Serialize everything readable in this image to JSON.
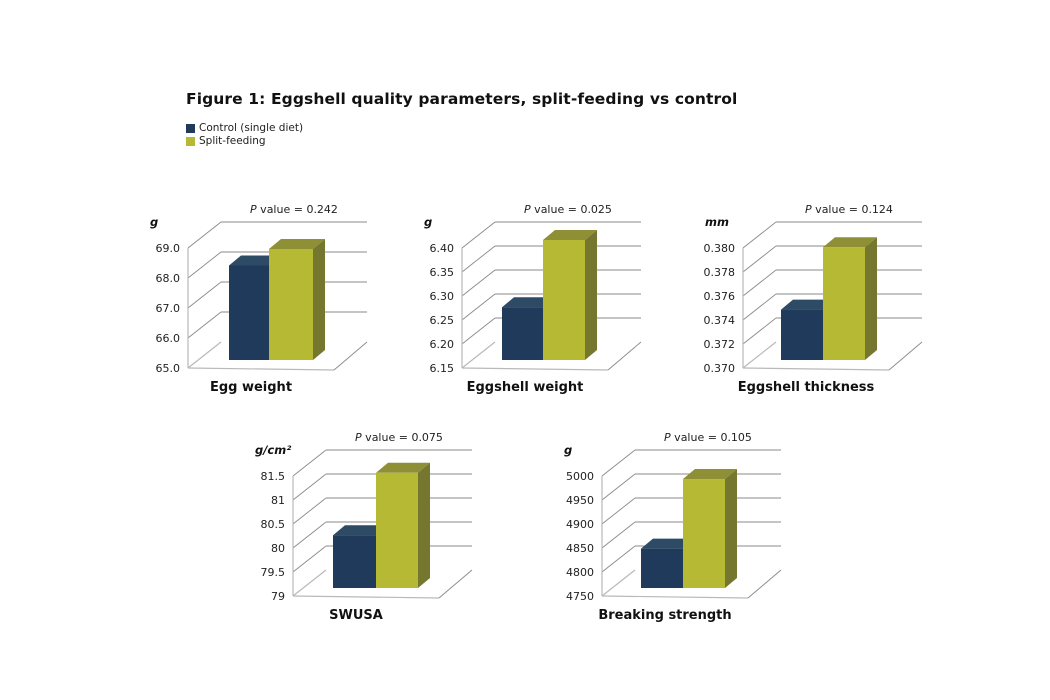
{
  "figure": {
    "title": "Figure 1: Eggshell quality parameters, split-feeding vs control"
  },
  "legend": [
    {
      "label": "Control (single diet)",
      "color": "#1f3a5a"
    },
    {
      "label": "Split-feeding",
      "color": "#b5b934"
    }
  ],
  "colors": {
    "control_front": "#1f3a5a",
    "control_top": "#2e4b66",
    "control_side": "#18304a",
    "split_front": "#b5b934",
    "split_top": "#8f8f36",
    "split_side": "#76772f"
  },
  "chart_data": [
    {
      "type": "bar",
      "title": "Egg weight",
      "ylabel": "g",
      "annotation": "P value = 0.242",
      "annotation_italic_part": "P",
      "annotation_rest": " value = 0.242",
      "categories": [
        "Control (single diet)",
        "Split-feeding"
      ],
      "values": [
        68.15,
        68.7
      ],
      "ylim": [
        65.0,
        69.0
      ],
      "yticks": [
        "65.0",
        "66.0",
        "67.0",
        "68.0",
        "69.0"
      ],
      "grid": true,
      "legend": "top-left"
    },
    {
      "type": "bar",
      "title": "Eggshell weight",
      "ylabel": "g",
      "annotation": "P value = 0.025",
      "annotation_italic_part": "P",
      "annotation_rest": " value = 0.025",
      "categories": [
        "Control (single diet)",
        "Split-feeding"
      ],
      "values": [
        6.26,
        6.4
      ],
      "ylim": [
        6.15,
        6.4
      ],
      "yticks": [
        "6.15",
        "6.20",
        "6.25",
        "6.30",
        "6.35",
        "6.40"
      ],
      "grid": true,
      "legend": "top-left"
    },
    {
      "type": "bar",
      "title": "Eggshell thickness",
      "ylabel": "mm",
      "annotation": "P value = 0.124",
      "annotation_italic_part": "P",
      "annotation_rest": " value = 0.124",
      "categories": [
        "Control (single diet)",
        "Split-feeding"
      ],
      "values": [
        0.3742,
        0.3794
      ],
      "ylim": [
        0.37,
        0.38
      ],
      "yticks": [
        "0.370",
        "0.372",
        "0.374",
        "0.376",
        "0.378",
        "0.380"
      ],
      "grid": true,
      "legend": "top-left"
    },
    {
      "type": "bar",
      "title": "SWUSA",
      "ylabel": "g/cm²",
      "annotation": "P value = 0.075",
      "annotation_italic_part": "P",
      "annotation_rest": " value = 0.075",
      "categories": [
        "Control (single diet)",
        "Split-feeding"
      ],
      "values": [
        80.1,
        81.4
      ],
      "ylim": [
        79,
        81.5
      ],
      "yticks": [
        "79",
        "79.5",
        "80",
        "80.5",
        "81",
        "81.5"
      ],
      "grid": true,
      "legend": "top-left"
    },
    {
      "type": "bar",
      "title": "Breaking strength",
      "ylabel": "g",
      "annotation": "P value = 0.105",
      "annotation_italic_part": "P",
      "annotation_rest": " value = 0.105",
      "categories": [
        "Control (single diet)",
        "Split-feeding"
      ],
      "values": [
        4832,
        4977
      ],
      "ylim": [
        4750,
        5000
      ],
      "yticks": [
        "4750",
        "4800",
        "4850",
        "4900",
        "4950",
        "5000"
      ],
      "grid": true,
      "legend": "top-left"
    }
  ]
}
